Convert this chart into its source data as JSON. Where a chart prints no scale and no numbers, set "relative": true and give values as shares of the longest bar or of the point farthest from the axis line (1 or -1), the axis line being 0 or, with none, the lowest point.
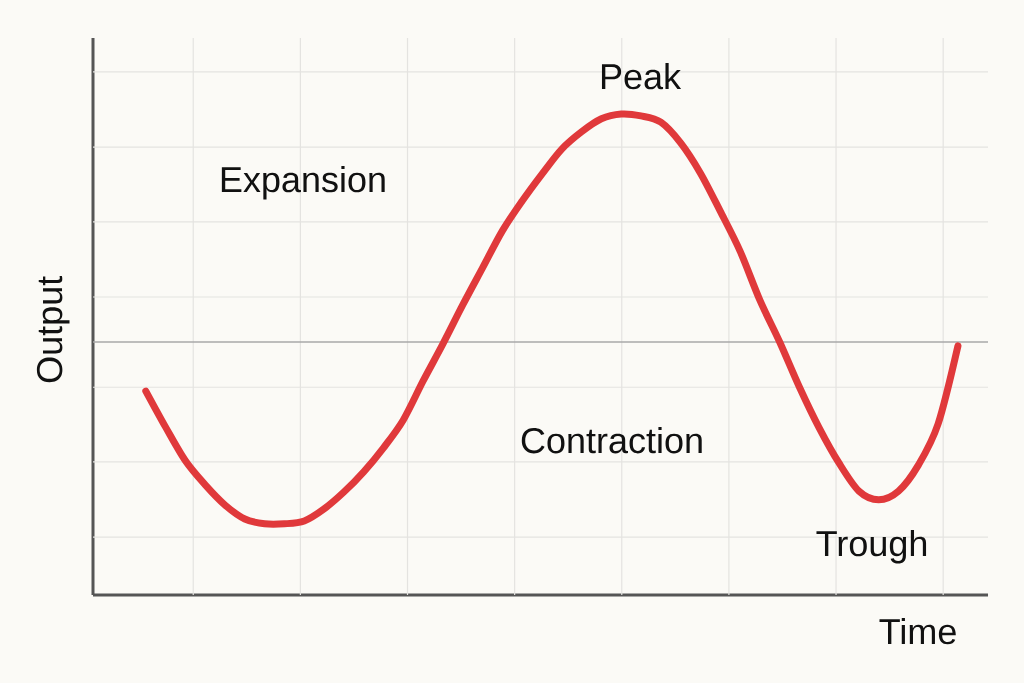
{
  "chart_data": {
    "type": "line",
    "relative": true,
    "xlabel": "Time",
    "ylabel": "Output",
    "categories": [
      null,
      null,
      null,
      null,
      null,
      null,
      null,
      null,
      null,
      null,
      null,
      null,
      null,
      null,
      null,
      null,
      null,
      null,
      null,
      null,
      null,
      null,
      null,
      null,
      null,
      null,
      null,
      null,
      null,
      null,
      null,
      null,
      null,
      null,
      null,
      null,
      null,
      null,
      null,
      null,
      null,
      null
    ],
    "series": [
      {
        "color": "#e0393b",
        "values": [
          0.424,
          0.349,
          0.279,
          0.229,
          0.187,
          0.158,
          0.148,
          0.148,
          0.154,
          0.179,
          0.214,
          0.256,
          0.306,
          0.364,
          0.445,
          0.522,
          0.603,
          0.68,
          0.757,
          0.819,
          0.875,
          0.927,
          0.963,
          0.99,
          1,
          0.996,
          0.983,
          0.94,
          0.877,
          0.798,
          0.715,
          0.613,
          0.526,
          0.432,
          0.347,
          0.274,
          0.216,
          0.198,
          0.216,
          0.27,
          0.356,
          0.518
        ]
      }
    ],
    "ref_lines": [
      {
        "axis": "y",
        "value": 0.526,
        "color": "#a8a8a8"
      }
    ],
    "annotations": [
      "Expansion",
      "Peak",
      "Contraction",
      "Trough"
    ],
    "grid": true
  }
}
